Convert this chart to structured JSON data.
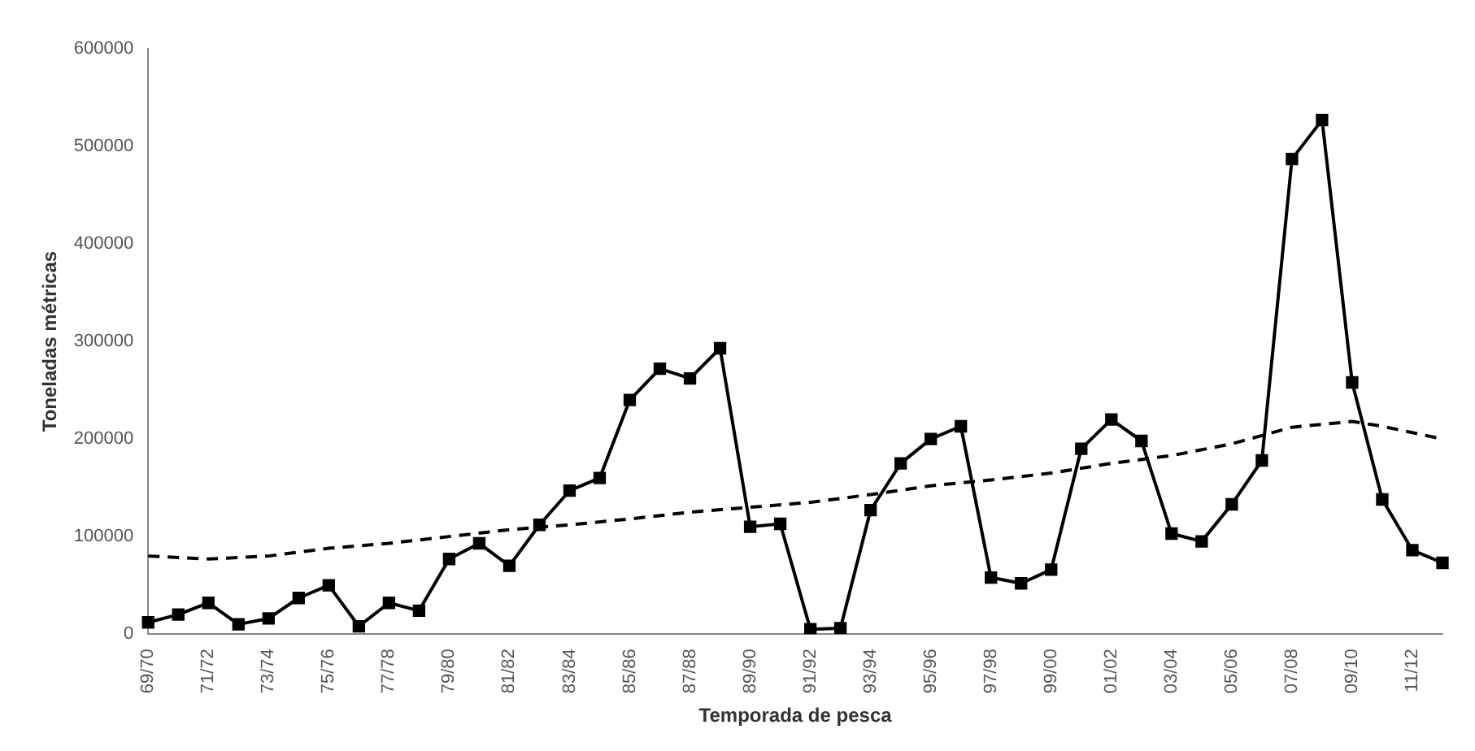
{
  "chart_data": {
    "type": "line",
    "xlabel": "Temporada de pesca",
    "ylabel": "Toneladas métricas",
    "categories": [
      "69/70",
      null,
      "71/72",
      null,
      "73/74",
      null,
      "75/76",
      null,
      "77/78",
      null,
      "79/80",
      null,
      "81/82",
      null,
      "83/84",
      null,
      "85/86",
      null,
      "87/88",
      null,
      "89/90",
      null,
      "91/92",
      null,
      "93/94",
      null,
      "95/96",
      null,
      "97/98",
      null,
      "99/00",
      null,
      "01/02",
      null,
      "03/04",
      null,
      "05/06",
      null,
      "07/08",
      null,
      "09/10",
      null,
      "11/12",
      null
    ],
    "series": [
      {
        "color": "#000000",
        "marker": "square",
        "line_style": "solid",
        "values": [
          12000,
          20000,
          32000,
          10000,
          16000,
          37000,
          50000,
          8000,
          32000,
          24000,
          77000,
          93000,
          70000,
          112000,
          147000,
          160000,
          240000,
          272000,
          262000,
          293000,
          110000,
          113000,
          5000,
          6000,
          127000,
          175000,
          200000,
          213000,
          58000,
          52000,
          66000,
          190000,
          220000,
          198000,
          103000,
          95000,
          133000,
          178000,
          487000,
          527000,
          258000,
          138000,
          86000,
          73000
        ]
      },
      {
        "color": "#000000",
        "marker": "none",
        "line_style": "dashed",
        "values": [
          80000,
          null,
          77000,
          null,
          80000,
          null,
          88000,
          null,
          93000,
          null,
          100000,
          null,
          107000,
          null,
          112000,
          null,
          118000,
          null,
          125000,
          null,
          130000,
          null,
          135000,
          null,
          143000,
          null,
          152000,
          null,
          158000,
          null,
          165000,
          null,
          175000,
          null,
          183000,
          null,
          195000,
          null,
          212000,
          null,
          218000,
          213000,
          null,
          200000
        ]
      }
    ],
    "ylim": [
      0,
      600000
    ],
    "yticks": [
      0,
      100000,
      200000,
      300000,
      400000,
      500000,
      600000
    ],
    "grid": false,
    "legend": false
  }
}
